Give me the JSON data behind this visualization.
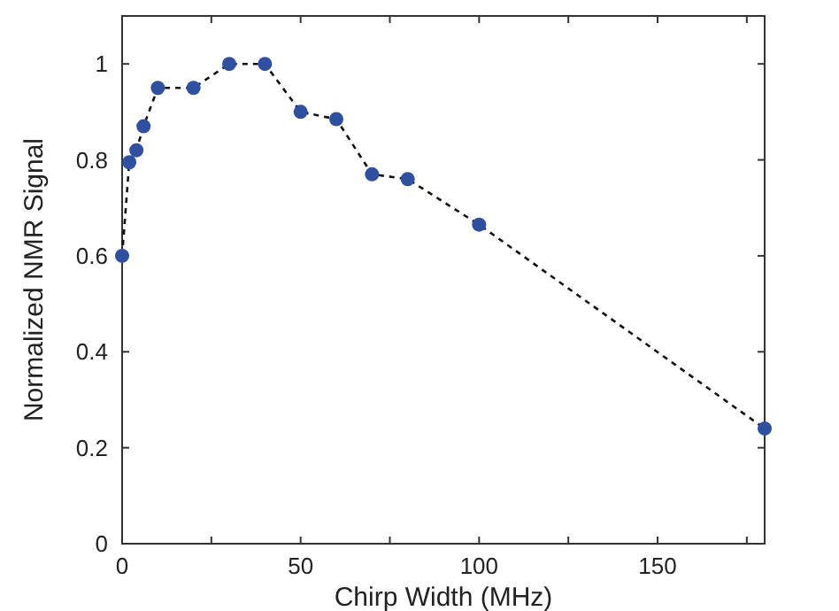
{
  "chart_data": {
    "type": "line",
    "xlabel": "Chirp Width (MHz)",
    "ylabel": "Normalized NMR Signal",
    "xlim": [
      0,
      180
    ],
    "ylim": [
      0,
      1.1
    ],
    "xticks": [
      0,
      {
        "value": 25,
        "label": null
      },
      50,
      {
        "value": 75,
        "label": null
      },
      100,
      {
        "value": 125,
        "label": null
      },
      150,
      {
        "value": 175,
        "label": null
      }
    ],
    "yticks": [
      0,
      0.2,
      0.4,
      0.6,
      0.8,
      1
    ],
    "x": [
      0,
      2,
      4,
      6,
      10,
      20,
      30,
      40,
      50,
      60,
      70,
      80,
      100,
      180
    ],
    "series": [
      {
        "color": "#2f4fa0",
        "values": [
          0.6,
          0.795,
          0.82,
          0.87,
          0.95,
          0.95,
          1,
          1,
          0.9,
          0.885,
          0.77,
          0.76,
          0.665,
          0.24
        ]
      }
    ],
    "marker": "circle",
    "line_style": "dashed",
    "grid": false
  }
}
